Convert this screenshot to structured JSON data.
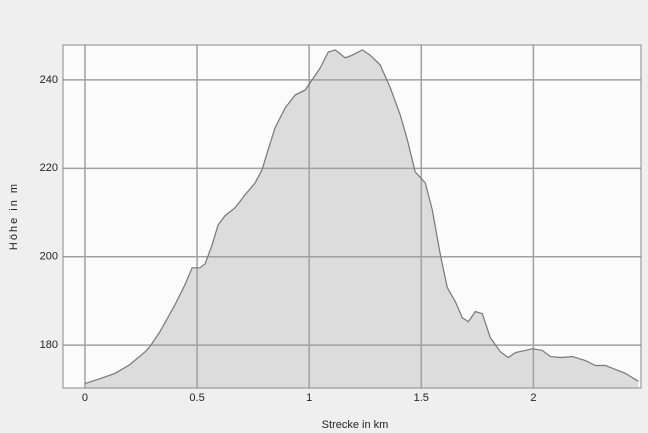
{
  "chart_data": {
    "type": "area",
    "xlabel": "Strecke in km",
    "ylabel": "Höhe in m",
    "x": [
      0,
      0.067,
      0.134,
      0.2,
      0.268,
      0.29,
      0.335,
      0.402,
      0.446,
      0.478,
      0.513,
      0.536,
      0.567,
      0.594,
      0.625,
      0.67,
      0.714,
      0.759,
      0.79,
      0.817,
      0.848,
      0.893,
      0.938,
      0.982,
      1.013,
      1.049,
      1.085,
      1.116,
      1.161,
      1.192,
      1.237,
      1.272,
      1.317,
      1.362,
      1.406,
      1.438,
      1.473,
      1.518,
      1.549,
      1.585,
      1.616,
      1.652,
      1.683,
      1.71,
      1.741,
      1.772,
      1.808,
      1.853,
      1.888,
      1.92,
      1.964,
      1.996,
      2.04,
      2.076,
      2.121,
      2.174,
      2.232,
      2.277,
      2.321,
      2.366,
      2.411,
      2.469
    ],
    "values": [
      171.3,
      172.4,
      173.6,
      175.6,
      178.5,
      179.7,
      183.1,
      189.2,
      193.7,
      197.5,
      197.5,
      198.4,
      202.7,
      207.2,
      209.3,
      211.1,
      214,
      216.7,
      219.7,
      224.2,
      229.2,
      233.7,
      236.6,
      237.7,
      240,
      242.7,
      246.3,
      246.8,
      245,
      245.6,
      246.8,
      245.6,
      243.4,
      238.2,
      232.1,
      226.4,
      219.2,
      216.7,
      210.6,
      200.5,
      193,
      189.8,
      186.2,
      185.3,
      187.6,
      187.1,
      181.7,
      178.5,
      177.2,
      178.3,
      178.8,
      179.2,
      178.8,
      177.4,
      177.2,
      177.4,
      176.5,
      175.4,
      175.4,
      174.5,
      173.6,
      171.8
    ],
    "color": "#dcdcdc",
    "line_color": "#777777",
    "xlim": [
      -0.098,
      2.48
    ],
    "ylim": [
      170.3,
      247.9
    ],
    "xticks": [
      0,
      0.5,
      1,
      1.5,
      2
    ],
    "yticks": [
      180,
      200,
      220,
      240
    ],
    "grid": true
  }
}
